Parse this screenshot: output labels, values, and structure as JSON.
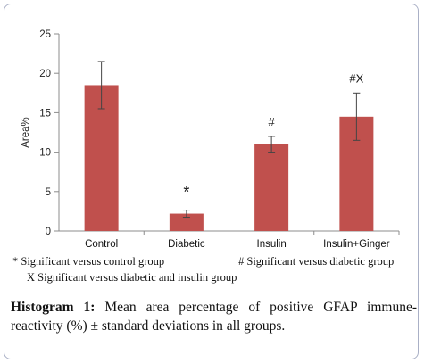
{
  "chart_data": {
    "type": "bar",
    "categories": [
      "Control",
      "Diabetic",
      "Insulin",
      "Insulin+Ginger"
    ],
    "values": [
      18.5,
      2.2,
      11.0,
      14.5
    ],
    "errors": [
      3.0,
      0.45,
      1.0,
      3.0
    ],
    "annotations": [
      "",
      "*",
      "#",
      "#X"
    ],
    "ylabel": "Area%",
    "xlabel": "",
    "ylim": [
      0,
      25
    ],
    "yticks": [
      0,
      5,
      10,
      15,
      20,
      25
    ],
    "bar_color": "#c0504d",
    "grid": false
  },
  "notes": {
    "control": "* Significant versus control group",
    "diabetic": "# Significant versus diabetic group",
    "insulin": "X Significant versus diabetic and insulin group"
  },
  "caption": {
    "lead": "Histogram 1:",
    "text": " Mean area percentage of positive GFAP immune-reactivity (%) ± standard deviations in all groups."
  }
}
